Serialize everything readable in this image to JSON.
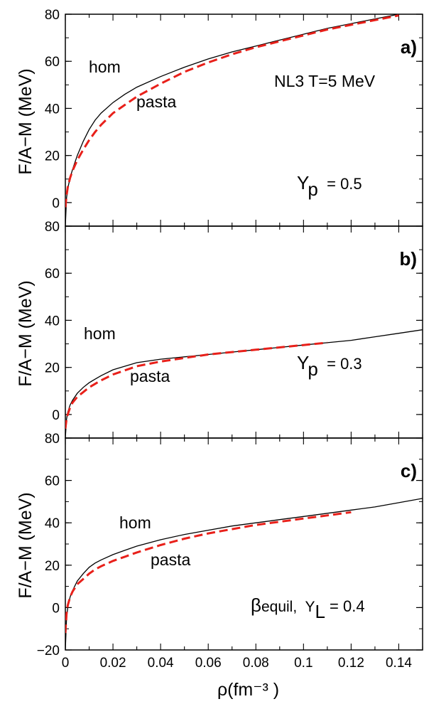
{
  "chart_data": [
    {
      "type": "line",
      "panel_label": "a)",
      "ylabel": "F/A−M (MeV)",
      "xlim": [
        0,
        0.15
      ],
      "ylim": [
        -10,
        80
      ],
      "y_ticks": [
        "0",
        "20",
        "40",
        "60",
        "80"
      ],
      "annotations": [
        "hom",
        "pasta",
        "NL3  T=5 MeV"
      ],
      "yfrac": {
        "prefix": "Y",
        "sub": "p",
        "value": "  = 0.5"
      },
      "series": [
        {
          "name": "hom",
          "color": "#000000",
          "style": "solid",
          "x": [
            0,
            0.0005,
            0.001,
            0.002,
            0.003,
            0.005,
            0.0075,
            0.01,
            0.0125,
            0.015,
            0.02,
            0.025,
            0.03,
            0.04,
            0.05,
            0.06,
            0.07,
            0.08,
            0.09,
            0.1,
            0.11,
            0.12,
            0.13,
            0.14,
            0.15
          ],
          "y": [
            -10,
            2,
            6,
            10.5,
            14,
            20,
            26,
            31,
            35,
            38,
            42.5,
            46,
            49,
            53.5,
            57.5,
            61,
            64,
            66.5,
            69,
            71.5,
            74,
            76,
            78,
            80,
            82
          ]
        },
        {
          "name": "pasta",
          "color": "#e8201a",
          "style": "dashed",
          "x": [
            0,
            0.0005,
            0.001,
            0.002,
            0.003,
            0.005,
            0.0075,
            0.01,
            0.0125,
            0.015,
            0.02,
            0.025,
            0.03,
            0.04,
            0.05,
            0.06,
            0.07,
            0.08,
            0.09,
            0.1,
            0.11,
            0.12,
            0.13,
            0.14
          ],
          "y": [
            -2,
            3,
            6.5,
            10.5,
            13.5,
            18,
            22.5,
            26.5,
            30,
            33,
            38,
            41.5,
            45,
            50.5,
            55.5,
            59.5,
            63,
            66,
            68.5,
            71,
            73.5,
            75.5,
            77.5,
            79.5
          ]
        }
      ]
    },
    {
      "type": "line",
      "panel_label": "b)",
      "ylabel": "F/A−M (MeV)",
      "xlim": [
        0,
        0.15
      ],
      "ylim": [
        -10,
        80
      ],
      "y_ticks": [
        "0",
        "20",
        "40",
        "60",
        "80"
      ],
      "annotations": [
        "hom",
        "pasta"
      ],
      "yfrac": {
        "prefix": "Y",
        "sub": "p",
        "value": "  = 0.3"
      },
      "series": [
        {
          "name": "hom",
          "color": "#000000",
          "style": "solid",
          "x": [
            0,
            0.0005,
            0.001,
            0.002,
            0.003,
            0.005,
            0.0075,
            0.01,
            0.0125,
            0.015,
            0.02,
            0.03,
            0.04,
            0.05,
            0.06,
            0.07,
            0.08,
            0.09,
            0.1,
            0.11,
            0.12,
            0.13,
            0.14,
            0.15
          ],
          "y": [
            -10,
            -2,
            1,
            4,
            6,
            9,
            11.5,
            13.5,
            15,
            16.5,
            19,
            22,
            23.5,
            24.5,
            25.5,
            26.5,
            27.5,
            28.5,
            29.5,
            30.5,
            31.5,
            33,
            34.5,
            36
          ]
        },
        {
          "name": "pasta",
          "color": "#e8201a",
          "style": "dashed",
          "x": [
            0,
            0.0005,
            0.001,
            0.002,
            0.003,
            0.005,
            0.0075,
            0.01,
            0.0125,
            0.015,
            0.02,
            0.03,
            0.04,
            0.05,
            0.06,
            0.07,
            0.08,
            0.09,
            0.1,
            0.11
          ],
          "y": [
            -6,
            -2,
            0,
            3,
            5,
            7.5,
            9.5,
            11.5,
            13,
            14.5,
            17,
            20.5,
            22.5,
            24,
            25.5,
            26.5,
            27.5,
            28.5,
            29.5,
            30.5
          ]
        }
      ]
    },
    {
      "type": "line",
      "panel_label": "c)",
      "ylabel": "F/A−M (MeV)",
      "xlabel": "ρ(fm⁻³ )",
      "xlim": [
        0,
        0.15
      ],
      "ylim": [
        -20,
        80
      ],
      "y_ticks": [
        "−20",
        "0",
        "20",
        "40",
        "60",
        "80"
      ],
      "x_ticks": [
        "0",
        "0.02",
        "0.04",
        "0.06",
        "0.08",
        "0.1",
        "0.12",
        "0.14"
      ],
      "annotations": [
        "hom",
        "pasta"
      ],
      "yfrac": {
        "prefix": "β",
        "mid": "equil,  Y",
        "sub": "L",
        "value": " = 0.4"
      },
      "series": [
        {
          "name": "hom",
          "color": "#000000",
          "style": "solid",
          "x": [
            0,
            0.0005,
            0.001,
            0.002,
            0.003,
            0.005,
            0.0075,
            0.01,
            0.0125,
            0.015,
            0.02,
            0.025,
            0.03,
            0.04,
            0.05,
            0.06,
            0.07,
            0.08,
            0.09,
            0.1,
            0.11,
            0.12,
            0.13,
            0.14,
            0.15
          ],
          "y": [
            -20,
            -5,
            0,
            5,
            8,
            12.5,
            16,
            19,
            21,
            22.5,
            25,
            27,
            29,
            32,
            34.5,
            36.5,
            38.5,
            40,
            41.5,
            43,
            44.5,
            46,
            47.5,
            49.5,
            51.5
          ]
        },
        {
          "name": "pasta",
          "color": "#e8201a",
          "style": "dashed",
          "x": [
            0,
            0.0005,
            0.001,
            0.002,
            0.003,
            0.005,
            0.0075,
            0.01,
            0.0125,
            0.015,
            0.02,
            0.025,
            0.03,
            0.04,
            0.05,
            0.06,
            0.07,
            0.08,
            0.09,
            0.1,
            0.11,
            0.12
          ],
          "y": [
            -12,
            -3,
            1,
            5,
            7.5,
            11,
            13.5,
            16,
            18,
            19.5,
            22,
            24,
            26,
            29.5,
            32.5,
            35,
            37,
            39,
            40.5,
            42,
            43.5,
            45
          ]
        }
      ]
    }
  ]
}
